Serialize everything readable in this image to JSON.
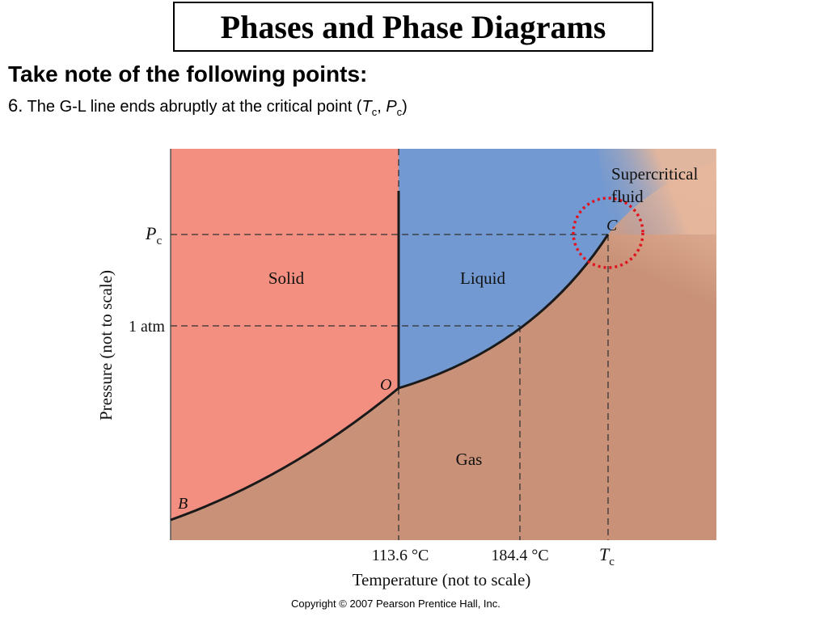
{
  "slide": {
    "title": "Phases and Phase Diagrams",
    "heading": "Take note of the following points:",
    "point": {
      "number": "6.",
      "text_before": " The G-L line ends abruptly at the critical point (",
      "T": "T",
      "T_sub": "c",
      "sep": ", ",
      "P": "P",
      "P_sub": "c",
      "close": ")"
    },
    "copyright": "Copyright © 2007 Pearson Prentice Hall, Inc."
  },
  "diagram": {
    "regions": {
      "solid": "Solid",
      "liquid": "Liquid",
      "gas": "Gas",
      "supercritical_line1": "Supercritical",
      "supercritical_line2": "fluid"
    },
    "points": {
      "O": "O",
      "B": "B",
      "C": "C"
    },
    "y_ticks": {
      "pc_main": "P",
      "pc_sub": "c",
      "atm": "1 atm"
    },
    "x_ticks": {
      "t1": "113.6 °C",
      "t2": "184.4 °C",
      "tc_main": "T",
      "tc_sub": "c"
    },
    "axis_labels": {
      "y": "Pressure (not to scale)",
      "x": "Temperature (not to scale)"
    },
    "colors": {
      "solid": "#f28f80",
      "liquid": "#7299d1",
      "gas": "#c99278",
      "supercritical": "#e9b69c",
      "highlight_circle": "#e0141e",
      "line": "#1a1a1a"
    }
  }
}
